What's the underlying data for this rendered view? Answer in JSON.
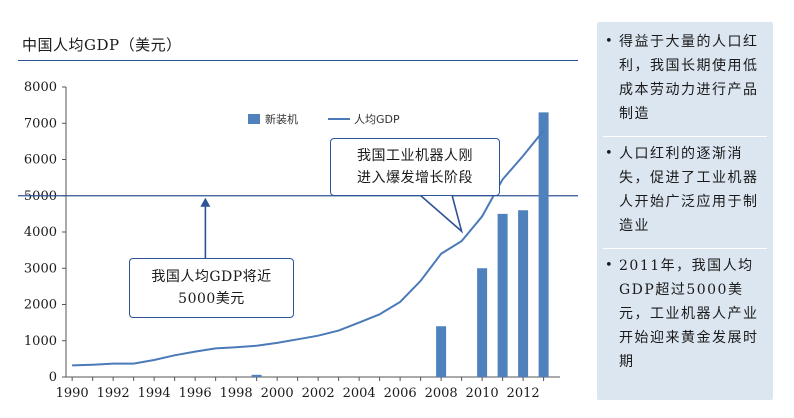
{
  "chart_data": {
    "type": "bar",
    "title": "中国人均GDP（美元）",
    "xlabel": "",
    "ylabel": "",
    "ylim": [
      0,
      8000
    ],
    "yticks": [
      0,
      1000,
      2000,
      3000,
      4000,
      5000,
      6000,
      7000,
      8000
    ],
    "x_tick_labels": [
      "1990",
      "1992",
      "1994",
      "1996",
      "1998",
      "2000",
      "2002",
      "2004",
      "2006",
      "2008",
      "2010",
      "2012"
    ],
    "legend_position": "top-right",
    "grid": false,
    "reference_line": {
      "y": 5000
    },
    "series": [
      {
        "name": "新装机",
        "type": "bar",
        "color": "#4f81bd",
        "points": [
          {
            "x": 1999,
            "y": 60
          },
          {
            "x": 2008,
            "y": 1400
          },
          {
            "x": 2010,
            "y": 3000
          },
          {
            "x": 2011,
            "y": 4500
          },
          {
            "x": 2012,
            "y": 4600
          },
          {
            "x": 2013,
            "y": 7300
          }
        ]
      },
      {
        "name": "人均GDP",
        "type": "line",
        "color": "#4a7ab8",
        "points": [
          {
            "x": 1990,
            "y": 320
          },
          {
            "x": 1991,
            "y": 340
          },
          {
            "x": 1992,
            "y": 370
          },
          {
            "x": 1993,
            "y": 370
          },
          {
            "x": 1994,
            "y": 470
          },
          {
            "x": 1995,
            "y": 600
          },
          {
            "x": 1996,
            "y": 700
          },
          {
            "x": 1997,
            "y": 790
          },
          {
            "x": 1998,
            "y": 820
          },
          {
            "x": 1999,
            "y": 860
          },
          {
            "x": 2000,
            "y": 940
          },
          {
            "x": 2001,
            "y": 1040
          },
          {
            "x": 2002,
            "y": 1140
          },
          {
            "x": 2003,
            "y": 1280
          },
          {
            "x": 2004,
            "y": 1500
          },
          {
            "x": 2005,
            "y": 1730
          },
          {
            "x": 2006,
            "y": 2070
          },
          {
            "x": 2007,
            "y": 2650
          },
          {
            "x": 2008,
            "y": 3400
          },
          {
            "x": 2009,
            "y": 3750
          },
          {
            "x": 2010,
            "y": 4430
          },
          {
            "x": 2011,
            "y": 5450
          },
          {
            "x": 2012,
            "y": 6100
          },
          {
            "x": 2013,
            "y": 6800
          }
        ]
      }
    ],
    "annotations": [
      {
        "text": "我国人均GDP将近\n5000美元",
        "points_to": {
          "x": 1996.5,
          "y": 5000
        }
      },
      {
        "text": "我国工业机器人刚\n进入爆发增长阶段",
        "points_to": {
          "x": 2009,
          "y": 3800
        }
      }
    ]
  },
  "side_panel": {
    "bullet": "•",
    "points": [
      "得益于大量的人口红利，我国长期使用低成本劳动力进行产品制造",
      "人口红利的逐渐消失，促进了工业机器人开始广泛应用于制造业",
      "2011年，我国人均GDP超过5000美元，工业机器人产业开始迎来黄金发展时期"
    ]
  }
}
